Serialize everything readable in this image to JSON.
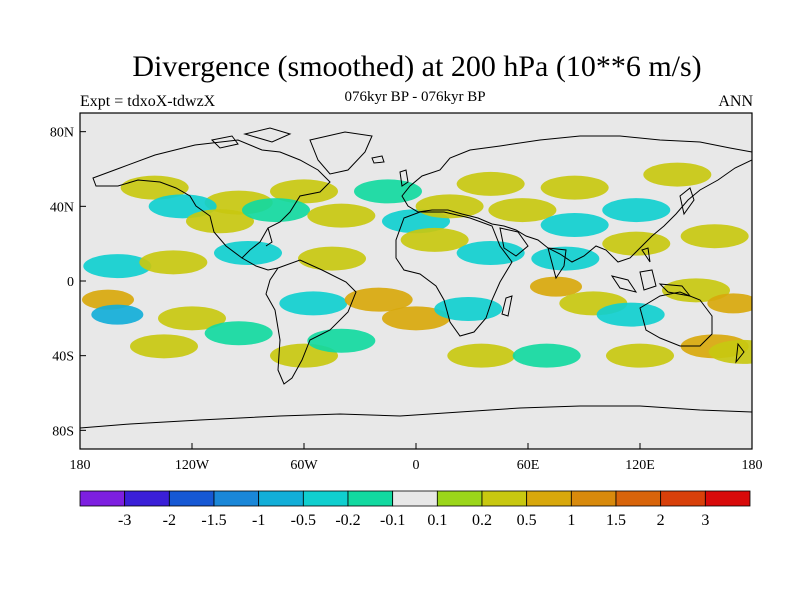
{
  "title": "Divergence (smoothed) at 200 hPa (10**6 m/s)",
  "subtitle": "076kyr BP - 076kyr BP",
  "left_label": "Expt = tdxoX-tdwzX",
  "right_label": "ANN",
  "lat_ticks": [
    {
      "value": 80,
      "label": "80N"
    },
    {
      "value": 40,
      "label": "40N"
    },
    {
      "value": 0,
      "label": "0"
    },
    {
      "value": -40,
      "label": "40S"
    },
    {
      "value": -80,
      "label": "80S"
    }
  ],
  "lon_ticks": [
    {
      "value": -180,
      "label": "180"
    },
    {
      "value": -120,
      "label": "120W"
    },
    {
      "value": -60,
      "label": "60W"
    },
    {
      "value": 0,
      "label": "0"
    },
    {
      "value": 60,
      "label": "60E"
    },
    {
      "value": 120,
      "label": "120E"
    },
    {
      "value": 180,
      "label": "180"
    }
  ],
  "colorbar": {
    "colors": [
      "#7d1fe0",
      "#3a1fd8",
      "#1658d4",
      "#1a87d8",
      "#12aed8",
      "#10cfcf",
      "#12d9a0",
      "#e8e8e8",
      "#9bd61a",
      "#c8c810",
      "#d8a80c",
      "#d88a0c",
      "#d8640a",
      "#d8400a",
      "#d80a0a"
    ],
    "labels": [
      "-3",
      "-2",
      "-1.5",
      "-1",
      "-0.5",
      "-0.2",
      "-0.1",
      "0.1",
      "0.2",
      "0.5",
      "1",
      "1.5",
      "2",
      "3"
    ]
  },
  "map_background": "#e8e8e8",
  "chart_data": {
    "type": "heatmap",
    "variable": "Divergence (smoothed) at 200 hPa",
    "units": "10**6 m/s",
    "xlim": [
      -180,
      180
    ],
    "ylim": [
      -90,
      90
    ],
    "levels": [
      -3,
      -2,
      -1.5,
      -1,
      -0.5,
      -0.2,
      -0.1,
      0.1,
      0.2,
      0.5,
      1,
      1.5,
      2,
      3
    ],
    "regions": [
      {
        "lon": -140,
        "lat": 50,
        "value": 0.2
      },
      {
        "lon": -95,
        "lat": 42,
        "value": 0.3
      },
      {
        "lon": -60,
        "lat": 48,
        "value": 0.25
      },
      {
        "lon": -15,
        "lat": 48,
        "value": -0.15
      },
      {
        "lon": 40,
        "lat": 52,
        "value": 0.2
      },
      {
        "lon": 85,
        "lat": 50,
        "value": 0.2
      },
      {
        "lon": 140,
        "lat": 57,
        "value": 0.2
      },
      {
        "lon": -125,
        "lat": 40,
        "value": -0.25
      },
      {
        "lon": -105,
        "lat": 32,
        "value": 0.3
      },
      {
        "lon": -75,
        "lat": 38,
        "value": -0.2
      },
      {
        "lon": -40,
        "lat": 35,
        "value": 0.4
      },
      {
        "lon": 0,
        "lat": 32,
        "value": -0.3
      },
      {
        "lon": 18,
        "lat": 40,
        "value": 0.3
      },
      {
        "lon": 57,
        "lat": 38,
        "value": 0.4
      },
      {
        "lon": 85,
        "lat": 30,
        "value": -0.25
      },
      {
        "lon": 118,
        "lat": 38,
        "value": -0.3
      },
      {
        "lon": 160,
        "lat": 24,
        "value": 0.4
      },
      {
        "lon": -160,
        "lat": 8,
        "value": -0.3
      },
      {
        "lon": -130,
        "lat": 10,
        "value": 0.4
      },
      {
        "lon": -90,
        "lat": 15,
        "value": -0.25
      },
      {
        "lon": -45,
        "lat": 12,
        "value": 0.3
      },
      {
        "lon": 10,
        "lat": 22,
        "value": 0.4
      },
      {
        "lon": 40,
        "lat": 15,
        "value": -0.3
      },
      {
        "lon": 80,
        "lat": 12,
        "value": -0.3
      },
      {
        "lon": 118,
        "lat": 20,
        "value": 0.3
      },
      {
        "lon": -165,
        "lat": -10,
        "value": 0.8
      },
      {
        "lon": -160,
        "lat": -18,
        "value": -0.7
      },
      {
        "lon": -120,
        "lat": -20,
        "value": 0.3
      },
      {
        "lon": -95,
        "lat": -28,
        "value": -0.2
      },
      {
        "lon": -55,
        "lat": -12,
        "value": -0.3
      },
      {
        "lon": -20,
        "lat": -10,
        "value": 0.5
      },
      {
        "lon": 0,
        "lat": -20,
        "value": 0.6
      },
      {
        "lon": 28,
        "lat": -15,
        "value": -0.3
      },
      {
        "lon": 75,
        "lat": -3,
        "value": 0.8
      },
      {
        "lon": 95,
        "lat": -12,
        "value": 0.3
      },
      {
        "lon": 115,
        "lat": -18,
        "value": -0.3
      },
      {
        "lon": 150,
        "lat": -5,
        "value": 0.3
      },
      {
        "lon": 170,
        "lat": -12,
        "value": 0.8
      },
      {
        "lon": -135,
        "lat": -35,
        "value": 0.3
      },
      {
        "lon": -60,
        "lat": -40,
        "value": 0.3
      },
      {
        "lon": -40,
        "lat": -32,
        "value": -0.15
      },
      {
        "lon": 35,
        "lat": -40,
        "value": 0.3
      },
      {
        "lon": 70,
        "lat": -40,
        "value": -0.15
      },
      {
        "lon": 120,
        "lat": -40,
        "value": 0.2
      },
      {
        "lon": 160,
        "lat": -35,
        "value": 0.5
      },
      {
        "lon": 175,
        "lat": -38,
        "value": 0.2
      }
    ]
  }
}
